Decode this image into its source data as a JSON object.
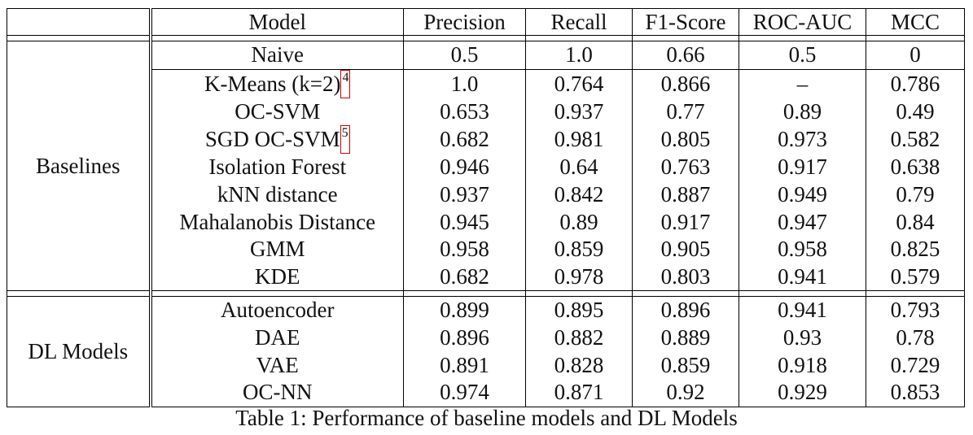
{
  "table": {
    "columns": [
      "Model",
      "Precision",
      "Recall",
      "F1-Score",
      "ROC-AUC",
      "MCC"
    ],
    "groups": [
      {
        "label": "Baselines",
        "rows": [
          {
            "model": "Naive",
            "footnote": "",
            "values": [
              "0.5",
              "1.0",
              "0.66",
              "0.5",
              "0"
            ],
            "bold": [
              false,
              false,
              false,
              false,
              false
            ]
          },
          {
            "model": "K-Means (k=2)",
            "footnote": "4",
            "values": [
              "1.0",
              "0.764",
              "0.866",
              "–",
              "0.786"
            ],
            "bold": [
              true,
              false,
              false,
              false,
              false
            ]
          },
          {
            "model": "OC-SVM",
            "footnote": "",
            "values": [
              "0.653",
              "0.937",
              "0.77",
              "0.89",
              "0.49"
            ],
            "bold": [
              false,
              false,
              false,
              false,
              false
            ]
          },
          {
            "model": "SGD OC-SVM",
            "footnote": "5",
            "values": [
              "0.682",
              "0.981",
              "0.805",
              "0.973",
              "0.582"
            ],
            "bold": [
              false,
              true,
              false,
              true,
              false
            ]
          },
          {
            "model": "Isolation Forest",
            "footnote": "",
            "values": [
              "0.946",
              "0.64",
              "0.763",
              "0.917",
              "0.638"
            ],
            "bold": [
              false,
              false,
              false,
              false,
              false
            ]
          },
          {
            "model": "kNN distance",
            "footnote": "",
            "values": [
              "0.937",
              "0.842",
              "0.887",
              "0.949",
              "0.79"
            ],
            "bold": [
              false,
              false,
              false,
              false,
              false
            ]
          },
          {
            "model": "Mahalanobis Distance",
            "footnote": "",
            "values": [
              "0.945",
              "0.89",
              "0.917",
              "0.947",
              "0.84"
            ],
            "bold": [
              false,
              false,
              false,
              false,
              false
            ]
          },
          {
            "model": "GMM",
            "footnote": "",
            "values": [
              "0.958",
              "0.859",
              "0.905",
              "0.958",
              "0.825"
            ],
            "bold": [
              false,
              false,
              false,
              false,
              false
            ]
          },
          {
            "model": "KDE",
            "footnote": "",
            "values": [
              "0.682",
              "0.978",
              "0.803",
              "0.941",
              "0.579"
            ],
            "bold": [
              false,
              false,
              false,
              false,
              false
            ]
          }
        ]
      },
      {
        "label": "DL Models",
        "rows": [
          {
            "model": "Autoencoder",
            "footnote": "",
            "values": [
              "0.899",
              "0.895",
              "0.896",
              "0.941",
              "0.793"
            ],
            "bold": [
              false,
              false,
              false,
              false,
              false
            ]
          },
          {
            "model": "DAE",
            "footnote": "",
            "values": [
              "0.896",
              "0.882",
              "0.889",
              "0.93",
              "0.78"
            ],
            "bold": [
              false,
              false,
              false,
              false,
              false
            ]
          },
          {
            "model": "VAE",
            "footnote": "",
            "values": [
              "0.891",
              "0.828",
              "0.859",
              "0.918",
              "0.729"
            ],
            "bold": [
              false,
              false,
              false,
              false,
              false
            ]
          },
          {
            "model": "OC-NN",
            "footnote": "",
            "values": [
              "0.974",
              "0.871",
              "0.92",
              "0.929",
              "0.853"
            ],
            "bold": [
              false,
              false,
              true,
              false,
              true
            ]
          }
        ]
      }
    ]
  },
  "caption": "Table 1: Performance of baseline models and DL Models"
}
